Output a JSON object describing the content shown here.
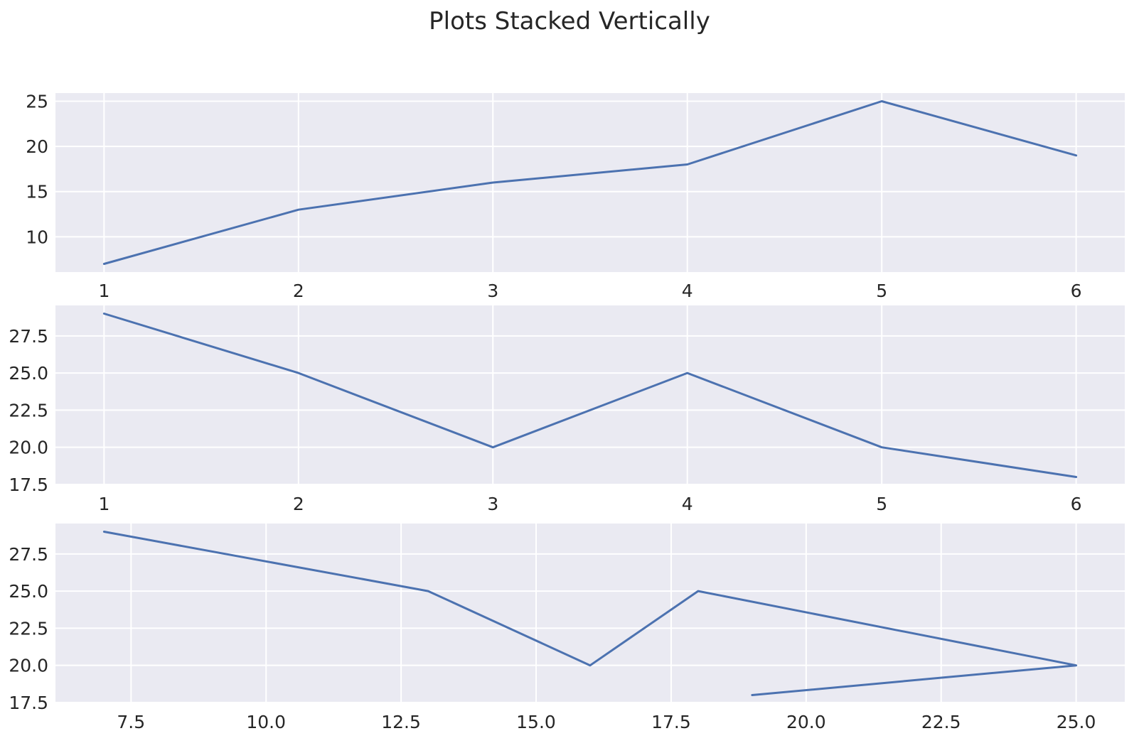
{
  "title": "Plots Stacked Vertically",
  "colors": {
    "figure_background": "#ffffff",
    "plot_background": "#eaeaf2",
    "grid": "#ffffff",
    "line": "#4c72b0",
    "text": "#262626"
  },
  "chart_data": [
    {
      "type": "line",
      "title": "",
      "xlabel": "",
      "ylabel": "",
      "x": [
        1,
        2,
        3,
        4,
        5,
        6
      ],
      "y": [
        7,
        13,
        16,
        18,
        25,
        19
      ],
      "xlim": [
        0.75,
        6.25
      ],
      "ylim": [
        6.1,
        25.9
      ],
      "xticks": {
        "values": [
          1,
          2,
          3,
          4,
          5,
          6
        ],
        "labels": [
          "1",
          "2",
          "3",
          "4",
          "5",
          "6"
        ]
      },
      "yticks": {
        "values": [
          10,
          15,
          20,
          25
        ],
        "labels": [
          "10",
          "15",
          "20",
          "25"
        ]
      },
      "grid": true,
      "legend": false
    },
    {
      "type": "line",
      "title": "",
      "xlabel": "",
      "ylabel": "",
      "x": [
        1,
        2,
        3,
        4,
        5,
        6
      ],
      "y": [
        29,
        25,
        20,
        25,
        20,
        18
      ],
      "xlim": [
        0.75,
        6.25
      ],
      "ylim": [
        17.45,
        29.55
      ],
      "xticks": {
        "values": [
          1,
          2,
          3,
          4,
          5,
          6
        ],
        "labels": [
          "1",
          "2",
          "3",
          "4",
          "5",
          "6"
        ]
      },
      "yticks": {
        "values": [
          17.5,
          20.0,
          22.5,
          25.0,
          27.5
        ],
        "labels": [
          "17.5",
          "20.0",
          "22.5",
          "25.0",
          "27.5"
        ]
      },
      "grid": true,
      "legend": false
    },
    {
      "type": "line",
      "title": "",
      "xlabel": "",
      "ylabel": "",
      "x": [
        7,
        13,
        16,
        18,
        25,
        19
      ],
      "y": [
        29,
        25,
        20,
        25,
        20,
        18
      ],
      "xlim": [
        6.1,
        25.9
      ],
      "ylim": [
        17.45,
        29.55
      ],
      "xticks": {
        "values": [
          7.5,
          10.0,
          12.5,
          15.0,
          17.5,
          20.0,
          22.5,
          25.0
        ],
        "labels": [
          "7.5",
          "10.0",
          "12.5",
          "15.0",
          "17.5",
          "20.0",
          "22.5",
          "25.0"
        ]
      },
      "yticks": {
        "values": [
          17.5,
          20.0,
          22.5,
          25.0,
          27.5
        ],
        "labels": [
          "17.5",
          "20.0",
          "22.5",
          "25.0",
          "27.5"
        ]
      },
      "grid": true,
      "legend": false
    }
  ]
}
